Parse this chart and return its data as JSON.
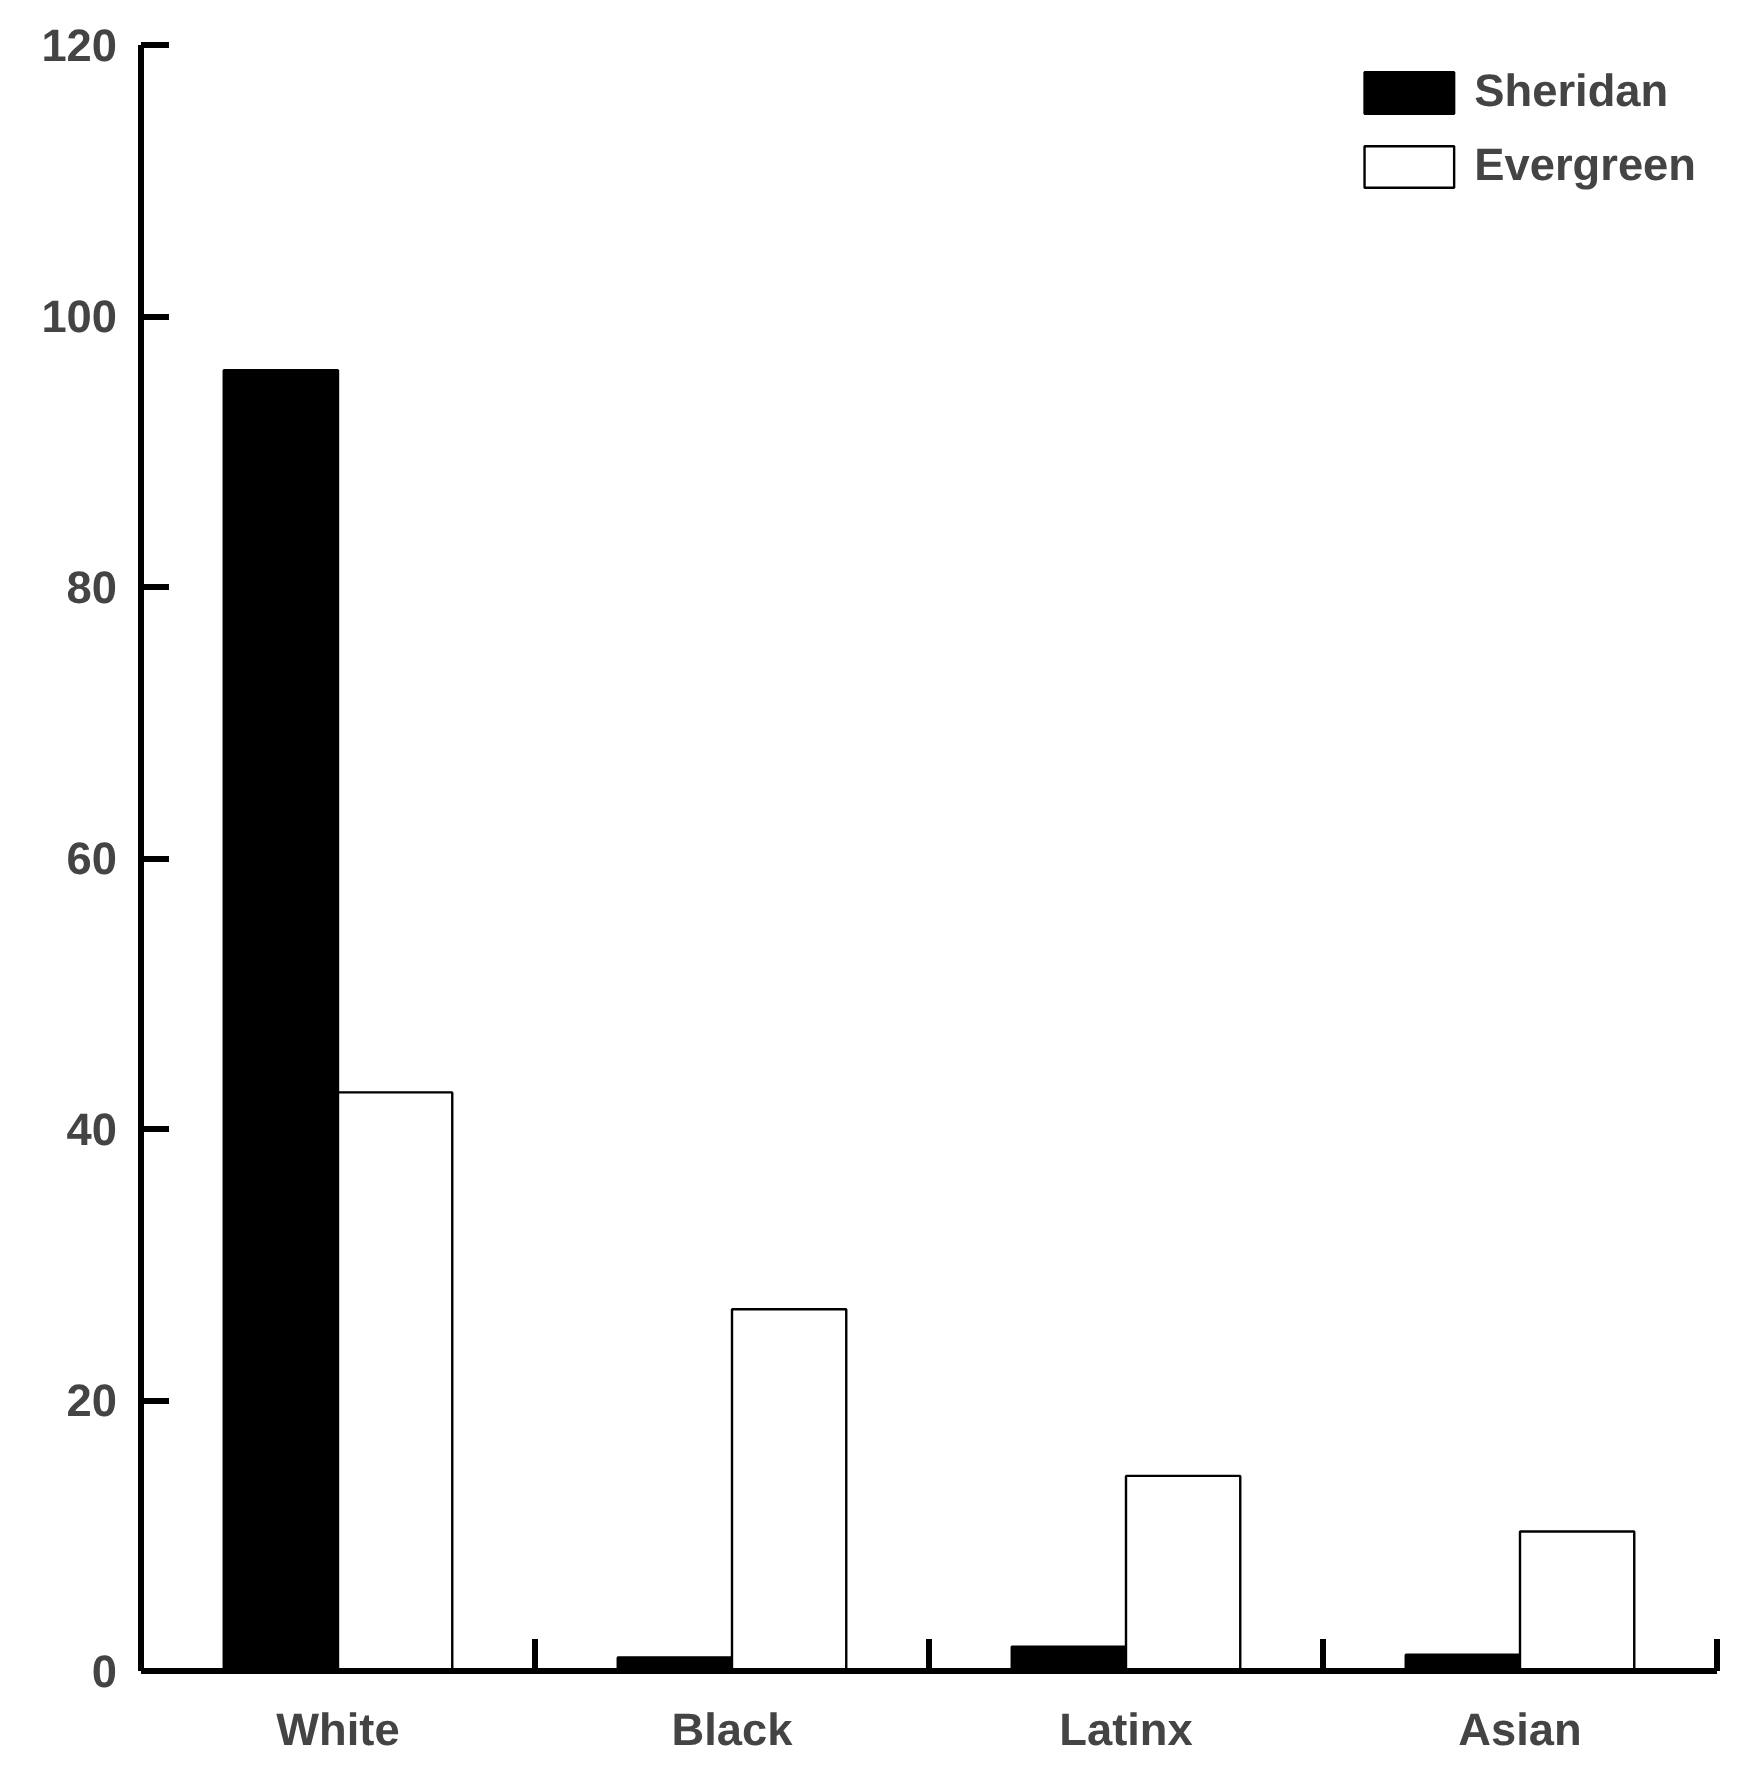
{
  "chart_data": {
    "type": "bar",
    "categories": [
      "White",
      "Black",
      "Latinx",
      "Asian"
    ],
    "series": [
      {
        "name": "Sheridan",
        "color": "#000000",
        "values": [
          96,
          1,
          1.8,
          1.2
        ]
      },
      {
        "name": "Evergreen",
        "color": "#ffffff",
        "values": [
          42.7,
          26.7,
          14.4,
          10.3
        ]
      }
    ],
    "ylim": [
      0,
      120
    ],
    "yticks": [
      0,
      20,
      40,
      60,
      80,
      100,
      120
    ],
    "grid": false,
    "legend": "top right"
  }
}
